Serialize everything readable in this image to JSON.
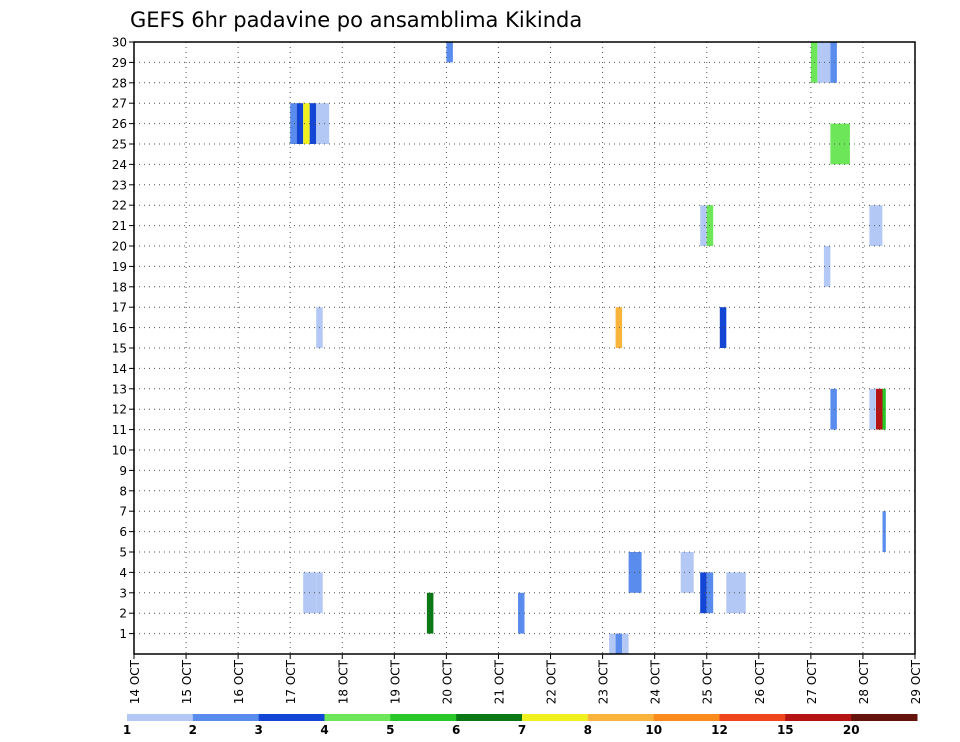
{
  "chart_data": {
    "type": "heatmap",
    "title": "GEFS 6hr padavine po ansamblima Kikinda",
    "x_unit": "6hr steps from 14 OCT 00z",
    "x_tick_labels": [
      "14 OCT",
      "15 OCT",
      "16 OCT",
      "17 OCT",
      "18 OCT",
      "19 OCT",
      "20 OCT",
      "21 OCT",
      "22 OCT",
      "23 OCT",
      "24 OCT",
      "25 OCT",
      "26 OCT",
      "27 OCT",
      "28 OCT",
      "29 OCT"
    ],
    "y_tick_labels": [
      "1",
      "2",
      "3",
      "4",
      "5",
      "6",
      "7",
      "8",
      "9",
      "10",
      "11",
      "12",
      "13",
      "14",
      "15",
      "16",
      "17",
      "18",
      "19",
      "20",
      "21",
      "22",
      "23",
      "24",
      "25",
      "26",
      "27",
      "28",
      "29",
      "30"
    ],
    "ylim": [
      0,
      30
    ],
    "grid": true,
    "colorbar": {
      "labels": [
        "1",
        "2",
        "3",
        "4",
        "5",
        "6",
        "7",
        "8",
        "10",
        "12",
        "15",
        "20"
      ],
      "colors": [
        "#b4c8f5",
        "#5a8cee",
        "#1446d6",
        "#6ee65a",
        "#28c828",
        "#0a7814",
        "#f0f01e",
        "#fab43c",
        "#fa8c1e",
        "#f0461e",
        "#b41414",
        "#64140a"
      ]
    },
    "cells": [
      {
        "member": 30,
        "step": 24.0,
        "len": 0.5,
        "class": 2
      },
      {
        "member": 29,
        "step": 52.0,
        "len": 0.5,
        "class": 4
      },
      {
        "member": 29,
        "step": 52.5,
        "len": 1.0,
        "class": 1
      },
      {
        "member": 29,
        "step": 53.5,
        "len": 0.5,
        "class": 2
      },
      {
        "member": 26,
        "step": 12.0,
        "len": 0.5,
        "class": 2
      },
      {
        "member": 26,
        "step": 12.5,
        "len": 0.5,
        "class": 3
      },
      {
        "member": 26,
        "step": 13.0,
        "len": 0.5,
        "class": 7
      },
      {
        "member": 26,
        "step": 13.5,
        "len": 0.5,
        "class": 3
      },
      {
        "member": 26,
        "step": 14.0,
        "len": 1.0,
        "class": 1
      },
      {
        "member": 25,
        "step": 53.5,
        "len": 1.5,
        "class": 4
      },
      {
        "member": 21,
        "step": 43.5,
        "len": 0.5,
        "class": 1
      },
      {
        "member": 21,
        "step": 44.0,
        "len": 0.5,
        "class": 4
      },
      {
        "member": 21,
        "step": 56.5,
        "len": 1.0,
        "class": 1
      },
      {
        "member": 19,
        "step": 53.0,
        "len": 0.5,
        "class": 1
      },
      {
        "member": 16,
        "step": 14.0,
        "len": 0.5,
        "class": 1
      },
      {
        "member": 16,
        "step": 37.0,
        "len": 0.5,
        "class": 8
      },
      {
        "member": 16,
        "step": 45.0,
        "len": 0.5,
        "class": 3
      },
      {
        "member": 12,
        "step": 53.5,
        "len": 0.5,
        "class": 2
      },
      {
        "member": 12,
        "step": 56.5,
        "len": 0.5,
        "class": 1
      },
      {
        "member": 12,
        "step": 57.0,
        "len": 0.5,
        "class": 11
      },
      {
        "member": 12,
        "step": 57.5,
        "len": 0.25,
        "class": 5
      },
      {
        "member": 6,
        "step": 57.5,
        "len": 0.25,
        "class": 2
      },
      {
        "member": 4,
        "step": 38.0,
        "len": 1.0,
        "class": 2
      },
      {
        "member": 4,
        "step": 42.0,
        "len": 1.0,
        "class": 1
      },
      {
        "member": 3,
        "step": 13.0,
        "len": 1.0,
        "class": 1
      },
      {
        "member": 3,
        "step": 14.0,
        "len": 0.5,
        "class": 1
      },
      {
        "member": 3,
        "step": 43.5,
        "len": 0.5,
        "class": 3
      },
      {
        "member": 3,
        "step": 44.0,
        "len": 0.5,
        "class": 2
      },
      {
        "member": 3,
        "step": 45.5,
        "len": 1.5,
        "class": 1
      },
      {
        "member": 2,
        "step": 22.5,
        "len": 0.5,
        "class": 6
      },
      {
        "member": 2,
        "step": 29.5,
        "len": 0.5,
        "class": 2
      },
      {
        "member": 0,
        "step": 36.5,
        "len": 0.5,
        "class": 1
      },
      {
        "member": 0,
        "step": 37.0,
        "len": 0.5,
        "class": 2
      },
      {
        "member": 0,
        "step": 37.5,
        "len": 0.5,
        "class": 1
      }
    ]
  }
}
